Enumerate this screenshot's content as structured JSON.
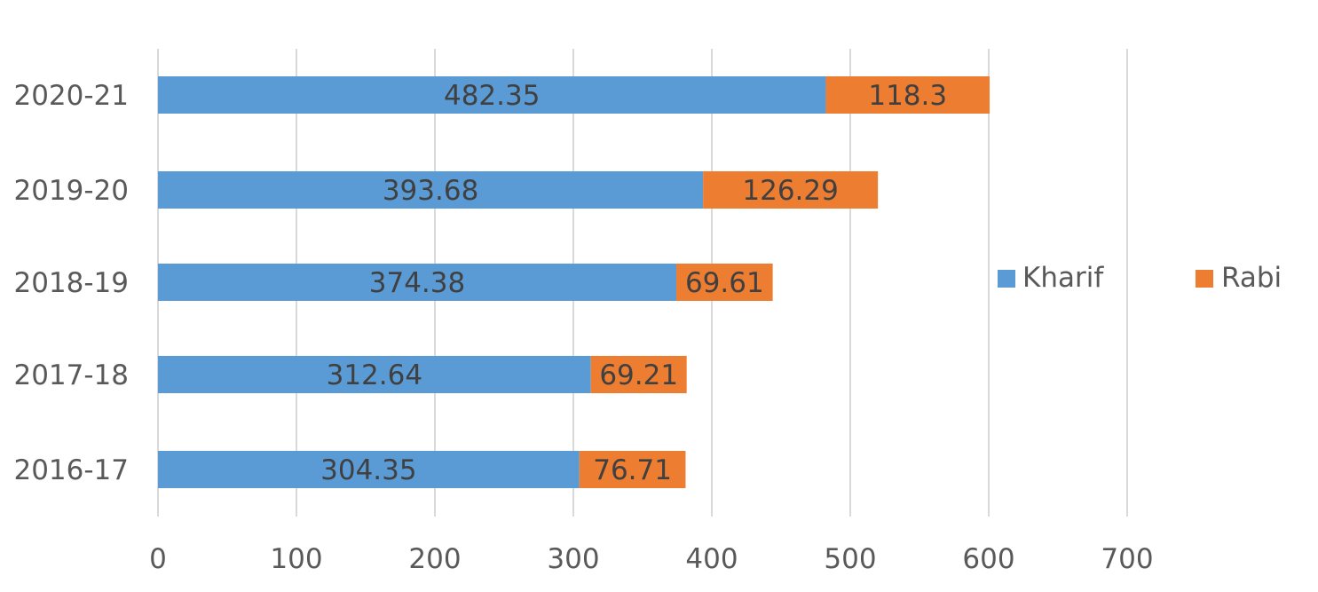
{
  "chart_data": {
    "type": "bar",
    "orientation": "horizontal",
    "stacked": true,
    "categories": [
      "2016-17",
      "2017-18",
      "2018-19",
      "2019-20",
      "2020-21"
    ],
    "series": [
      {
        "name": "Kharif",
        "values": [
          304.35,
          312.64,
          374.38,
          393.68,
          482.35
        ],
        "color": "#5b9bd5"
      },
      {
        "name": "Rabi",
        "values": [
          76.71,
          69.21,
          69.61,
          126.29,
          118.3
        ],
        "color": "#ed7d31"
      }
    ],
    "data_labels": [
      [
        "304.35",
        "312.64",
        "374.38",
        "393.68",
        "482.35"
      ],
      [
        "76.71",
        "69.21",
        "69.61",
        "126.29",
        "118.3"
      ]
    ],
    "xlim": [
      0,
      700
    ],
    "xticks": [
      "0",
      "100",
      "200",
      "300",
      "400",
      "500",
      "600",
      "700"
    ],
    "grid": true,
    "legend": "right",
    "title": "",
    "xlabel": "",
    "ylabel": ""
  }
}
